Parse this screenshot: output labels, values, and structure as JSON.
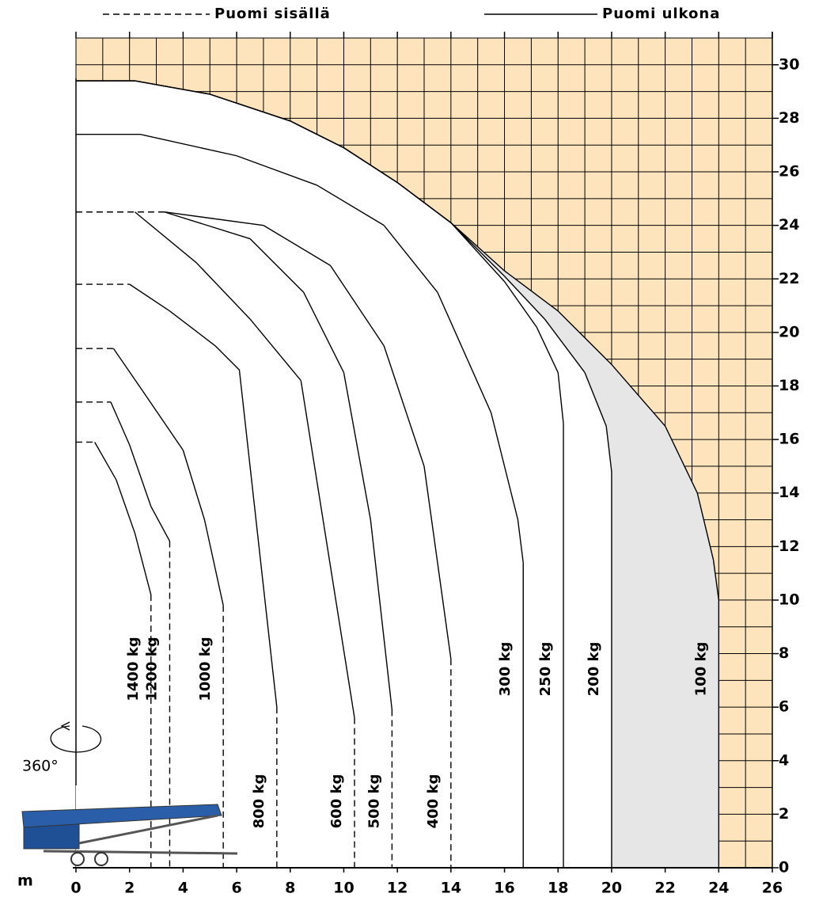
{
  "chart_data": {
    "type": "line",
    "legend": [
      {
        "label": "Puomi sisällä",
        "style": "dashed"
      },
      {
        "label": "Puomi ulkona",
        "style": "solid"
      }
    ],
    "x_label": "m",
    "rotation_label": "360°",
    "background_color": "#fde4bc",
    "grid": true,
    "xlim": [
      0,
      26
    ],
    "ylim": [
      0,
      31
    ],
    "xticks": [
      0,
      2,
      4,
      6,
      8,
      10,
      12,
      14,
      16,
      18,
      20,
      22,
      24,
      26
    ],
    "yticks": [
      0,
      2,
      4,
      6,
      8,
      10,
      12,
      14,
      16,
      18,
      20,
      22,
      24,
      26,
      28,
      30
    ],
    "xminor": [
      1,
      3,
      5,
      7,
      9,
      11,
      13,
      15,
      17,
      19,
      21,
      23,
      25
    ],
    "yminor": [
      1,
      3,
      5,
      7,
      9,
      11,
      13,
      15,
      17,
      19,
      21,
      23,
      25,
      27,
      29,
      31
    ],
    "series": [
      {
        "name": "100 kg",
        "color": "#000",
        "fill": "#e6e6e6",
        "x": [
          0,
          2.2,
          5,
          8,
          10,
          12,
          14,
          16,
          18,
          20,
          22,
          23.2,
          23.8,
          24,
          24
        ],
        "values": [
          29.4,
          29.4,
          28.9,
          27.9,
          26.9,
          25.6,
          24.1,
          22.3,
          20.8,
          18.8,
          16.5,
          14,
          11.5,
          10,
          0
        ],
        "segment_styles": [
          "solid",
          "solid",
          "solid",
          "solid",
          "solid",
          "solid",
          "solid",
          "solid",
          "solid",
          "solid",
          "solid",
          "solid",
          "solid",
          "solid"
        ]
      },
      {
        "name": "200 kg",
        "color": "#000",
        "fill": "#ffffff",
        "x": [
          0,
          2.2,
          5,
          8,
          10,
          12,
          14,
          16,
          17.5,
          19,
          19.8,
          20,
          20
        ],
        "values": [
          29.4,
          29.4,
          28.9,
          27.9,
          26.9,
          25.6,
          24.1,
          22.1,
          20.5,
          18.5,
          16.5,
          14.8,
          0
        ],
        "segment_styles": [
          "solid",
          "solid",
          "solid",
          "solid",
          "solid",
          "solid",
          "solid",
          "solid",
          "solid",
          "solid",
          "solid",
          "solid"
        ]
      },
      {
        "name": "250 kg",
        "color": "#000",
        "x": [
          0,
          2.2,
          5,
          8,
          10,
          12,
          14,
          16,
          17.2,
          18,
          18.2,
          18.2
        ],
        "values": [
          29.4,
          29.4,
          28.9,
          27.9,
          26.9,
          25.6,
          24.1,
          21.9,
          20.2,
          18.5,
          16.6,
          0
        ],
        "segment_styles": [
          "solid",
          "solid",
          "solid",
          "solid",
          "solid",
          "solid",
          "solid",
          "solid",
          "solid",
          "solid",
          "solid"
        ]
      },
      {
        "name": "300 kg",
        "color": "#000",
        "x": [
          0,
          2.4,
          6,
          9,
          11.5,
          13.5,
          15.5,
          16.5,
          16.7,
          16.7
        ],
        "values": [
          27.4,
          27.4,
          26.6,
          25.5,
          24,
          21.5,
          17,
          13,
          11.4,
          0
        ],
        "segment_styles": [
          "solid",
          "solid",
          "solid",
          "solid",
          "solid",
          "solid",
          "solid",
          "solid",
          "solid"
        ]
      },
      {
        "name": "400 kg",
        "color": "#000",
        "x": [
          0,
          3.3,
          7,
          9.5,
          11.5,
          13,
          14,
          14
        ],
        "values": [
          24.5,
          24.5,
          24,
          22.5,
          19.5,
          15,
          7.8,
          0
        ],
        "segment_styles": [
          "dashed",
          "solid",
          "solid",
          "solid",
          "solid",
          "solid",
          "dashed"
        ]
      },
      {
        "name": "500 kg",
        "color": "#000",
        "x": [
          0,
          3.3,
          6.5,
          8.5,
          10,
          11,
          11.8,
          11.8
        ],
        "values": [
          24.5,
          24.5,
          23.5,
          21.5,
          18.5,
          13,
          5.9,
          0
        ],
        "segment_styles": [
          "dashed",
          "solid",
          "solid",
          "solid",
          "solid",
          "solid",
          "dashed"
        ]
      },
      {
        "name": "600 kg",
        "color": "#000",
        "x": [
          0,
          2.2,
          4.5,
          6.5,
          8.4,
          10.4,
          10.4
        ],
        "values": [
          24.5,
          24.5,
          22.6,
          20.5,
          18.2,
          5.6,
          0
        ],
        "segment_styles": [
          "dashed",
          "solid",
          "solid",
          "solid",
          "solid",
          "dashed"
        ]
      },
      {
        "name": "800 kg",
        "color": "#000",
        "x": [
          0,
          2,
          3.5,
          5.2,
          6.1,
          7.5,
          7.5
        ],
        "values": [
          21.8,
          21.8,
          20.8,
          19.5,
          18.6,
          6,
          0
        ],
        "segment_styles": [
          "dashed",
          "solid",
          "solid",
          "solid",
          "solid",
          "dashed"
        ]
      },
      {
        "name": "1000 kg",
        "color": "#000",
        "x": [
          0,
          1.4,
          2.5,
          4,
          4.8,
          5.5,
          5.5
        ],
        "values": [
          19.4,
          19.4,
          17.8,
          15.6,
          13,
          9.8,
          0
        ],
        "segment_styles": [
          "dashed",
          "solid",
          "solid",
          "solid",
          "solid",
          "dashed"
        ]
      },
      {
        "name": "1200 kg",
        "color": "#000",
        "x": [
          0,
          1.3,
          2,
          2.8,
          3.5,
          3.5
        ],
        "values": [
          17.4,
          17.4,
          15.8,
          13.5,
          12.2,
          0
        ],
        "segment_styles": [
          "dashed",
          "solid",
          "solid",
          "solid",
          "dashed"
        ]
      },
      {
        "name": "1400 kg",
        "color": "#000",
        "x": [
          0,
          0.7,
          1.5,
          2.2,
          2.8,
          2.8
        ],
        "values": [
          15.9,
          15.9,
          14.5,
          12.5,
          10.2,
          0
        ],
        "segment_styles": [
          "dashed",
          "solid",
          "solid",
          "solid",
          "dashed"
        ]
      }
    ]
  }
}
